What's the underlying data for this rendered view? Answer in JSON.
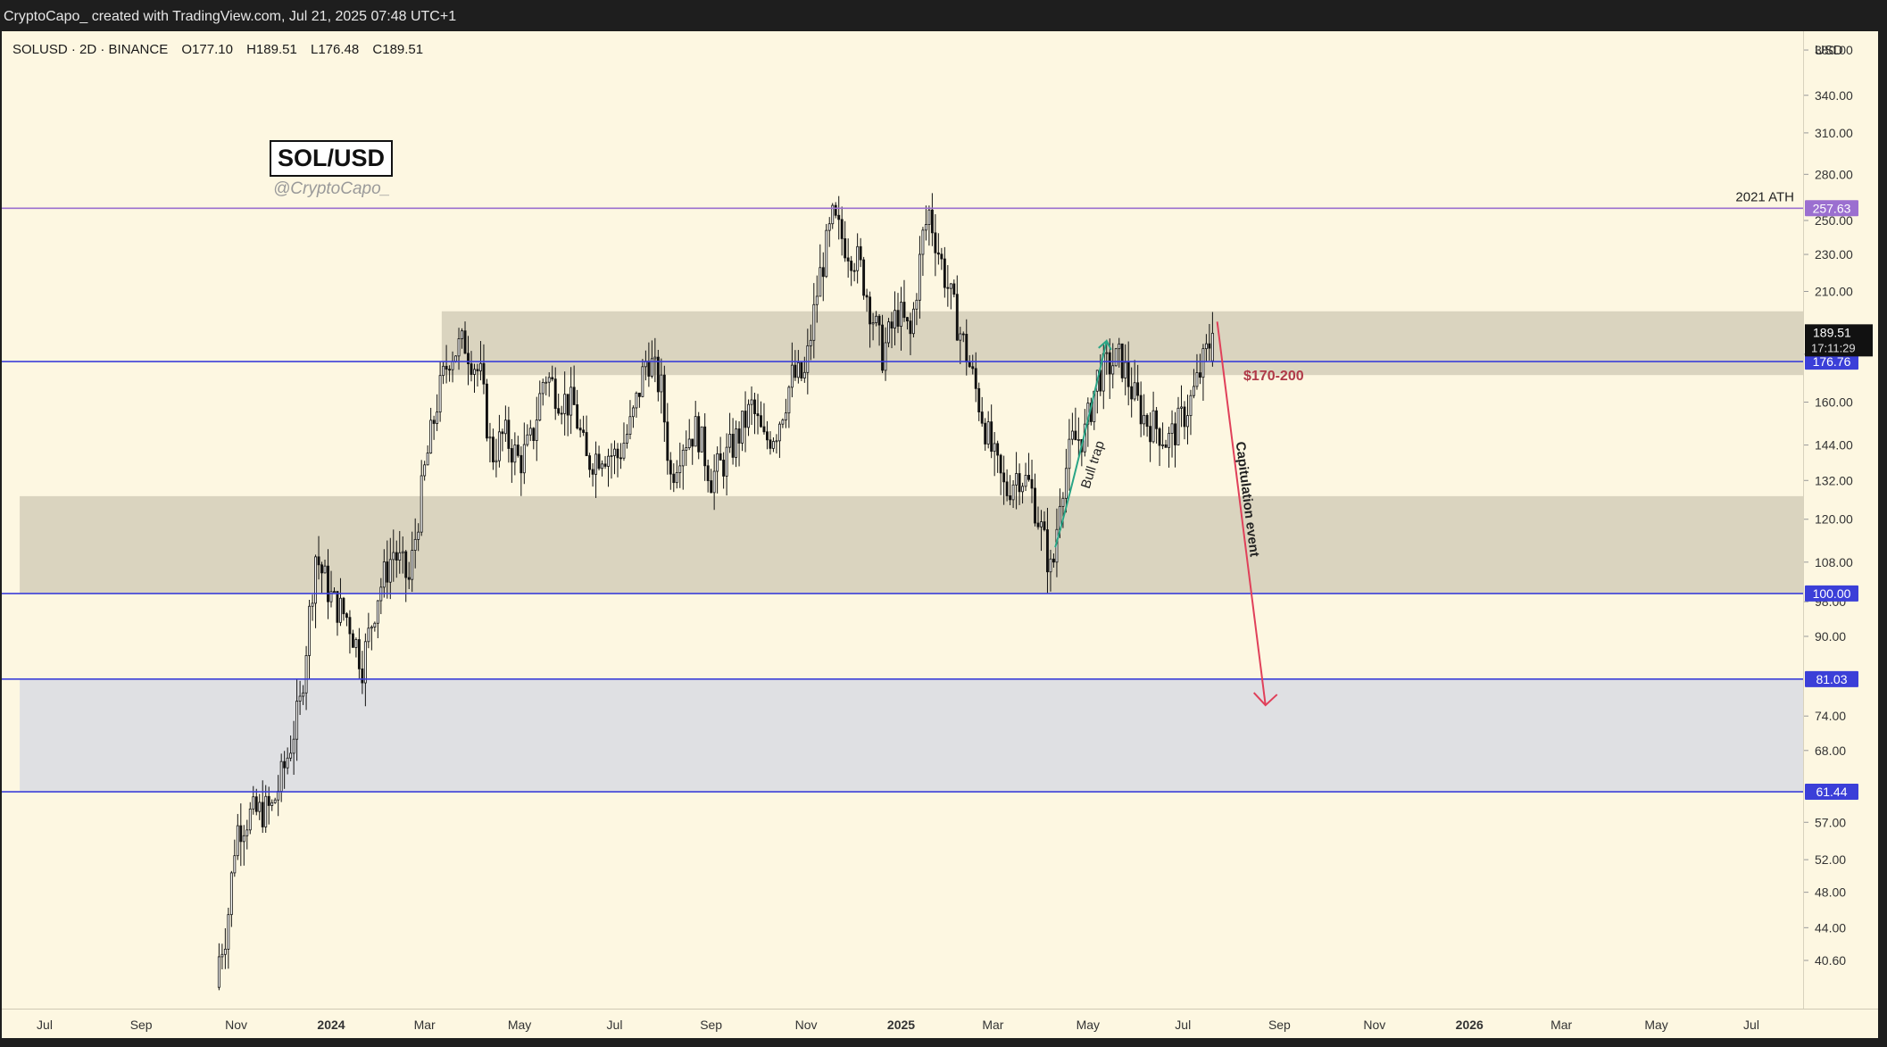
{
  "header": {
    "attribution": "CryptoCapo_ created with TradingView.com, Jul 21, 2025 07:48 UTC+1"
  },
  "legend": {
    "symbol": "SOLUSD · 2D · BINANCE",
    "open": "O177.10",
    "high": "H189.51",
    "low": "L176.48",
    "close": "C189.51"
  },
  "watermark": {
    "title": "SOL/USD",
    "handle": "@CryptoCapo_"
  },
  "price_axis": {
    "currency": "USD"
  },
  "countdown": "17:11:29",
  "colors": {
    "background": "#fdf7e1",
    "line_purple": "#9b6fd0",
    "line_blue": "#3b3fd8",
    "zone_tan": "#d6cfbb",
    "zone_blue": "#dcdde3",
    "bull_trap": "#2aa586",
    "capitulation": "#e0405a",
    "candle": "#111111"
  },
  "chart_data": {
    "type": "candlestick",
    "symbol": "SOLUSD",
    "interval": "2D",
    "exchange": "BINANCE",
    "scale": "log",
    "y_range": [
      38.5,
      420
    ],
    "x_range": [
      "2023-06-15",
      "2026-07-31"
    ],
    "y_ticks": [
      40.6,
      44,
      48,
      52,
      57,
      68,
      74,
      90,
      98,
      108,
      120,
      132,
      144,
      160,
      180,
      210,
      230,
      250,
      280,
      310,
      340,
      380
    ],
    "x_ticks": [
      {
        "label": "Jul",
        "date": "2023-07-01"
      },
      {
        "label": "Sep",
        "date": "2023-09-01"
      },
      {
        "label": "Nov",
        "date": "2023-11-01"
      },
      {
        "label": "2024",
        "date": "2024-01-01",
        "bold": true
      },
      {
        "label": "Mar",
        "date": "2024-03-01"
      },
      {
        "label": "May",
        "date": "2024-05-01"
      },
      {
        "label": "Jul",
        "date": "2024-07-01"
      },
      {
        "label": "Sep",
        "date": "2024-09-01"
      },
      {
        "label": "Nov",
        "date": "2024-11-01"
      },
      {
        "label": "2025",
        "date": "2025-01-01",
        "bold": true
      },
      {
        "label": "Mar",
        "date": "2025-03-01"
      },
      {
        "label": "May",
        "date": "2025-05-01"
      },
      {
        "label": "Jul",
        "date": "2025-07-01"
      },
      {
        "label": "Sep",
        "date": "2025-09-01"
      },
      {
        "label": "Nov",
        "date": "2025-11-01"
      },
      {
        "label": "2026",
        "date": "2026-01-01",
        "bold": true
      },
      {
        "label": "Mar",
        "date": "2026-03-01"
      },
      {
        "label": "May",
        "date": "2026-05-01"
      },
      {
        "label": "Jul",
        "date": "2026-07-01"
      }
    ],
    "levels": [
      {
        "price": 257.63,
        "label": "257.63",
        "color": "purple",
        "text": "2021 ATH"
      },
      {
        "price": 176.76,
        "label": "176.76",
        "color": "blue"
      },
      {
        "price": 100.0,
        "label": "100.00",
        "color": "blue"
      },
      {
        "price": 81.03,
        "label": "81.03",
        "color": "blue"
      },
      {
        "price": 61.44,
        "label": "61.44",
        "color": "blue"
      }
    ],
    "last_price": {
      "price": 189.51,
      "label": "189.51"
    },
    "zones": [
      {
        "from_date": "2024-03-12",
        "low": 171,
        "high": 200,
        "color": "tan"
      },
      {
        "from_date": "2023-06-15",
        "low": 100,
        "high": 127,
        "color": "tan"
      },
      {
        "from_date": "2023-06-15",
        "low": 61.44,
        "high": 81.03,
        "color": "blue"
      }
    ],
    "price_path": [
      [
        "2023-10-21",
        38,
        41
      ],
      [
        "2023-10-26",
        43,
        44
      ],
      [
        "2023-11-01",
        47,
        56
      ],
      [
        "2023-11-10",
        57,
        58
      ],
      [
        "2023-11-24",
        59,
        59
      ],
      [
        "2023-12-03",
        62,
        66
      ],
      [
        "2023-12-12",
        74,
        76
      ],
      [
        "2023-12-22",
        89,
        110
      ],
      [
        "2024-01-02",
        104,
        98
      ],
      [
        "2024-01-12",
        96,
        94
      ],
      [
        "2024-01-21",
        87,
        84
      ],
      [
        "2024-01-31",
        94,
        100
      ],
      [
        "2024-02-10",
        105,
        111
      ],
      [
        "2024-02-20",
        108,
        103
      ],
      [
        "2024-03-01",
        124,
        135
      ],
      [
        "2024-03-09",
        148,
        160
      ],
      [
        "2024-03-17",
        185,
        180
      ],
      [
        "2024-03-27",
        190,
        185
      ],
      [
        "2024-04-06",
        176,
        170
      ],
      [
        "2024-04-13",
        145,
        140
      ],
      [
        "2024-04-21",
        150,
        148
      ],
      [
        "2024-05-01",
        143,
        138
      ],
      [
        "2024-05-09",
        147,
        146
      ],
      [
        "2024-05-17",
        160,
        172
      ],
      [
        "2024-05-27",
        168,
        162
      ],
      [
        "2024-06-05",
        160,
        158
      ],
      [
        "2024-06-13",
        145,
        138
      ],
      [
        "2024-06-23",
        132,
        142
      ],
      [
        "2024-07-03",
        148,
        140
      ],
      [
        "2024-07-12",
        145,
        152
      ],
      [
        "2024-07-22",
        175,
        180
      ],
      [
        "2024-07-31",
        175,
        165
      ],
      [
        "2024-08-06",
        140,
        133
      ],
      [
        "2024-08-13",
        148,
        145
      ],
      [
        "2024-08-23",
        155,
        150
      ],
      [
        "2024-09-01",
        140,
        133
      ],
      [
        "2024-09-09",
        133,
        138
      ],
      [
        "2024-09-19",
        145,
        148
      ],
      [
        "2024-09-27",
        155,
        158
      ],
      [
        "2024-10-05",
        150,
        145
      ],
      [
        "2024-10-13",
        145,
        150
      ],
      [
        "2024-10-23",
        165,
        170
      ],
      [
        "2024-10-31",
        175,
        170
      ],
      [
        "2024-11-09",
        190,
        215
      ],
      [
        "2024-11-18",
        240,
        250
      ],
      [
        "2024-11-25",
        245,
        238
      ],
      [
        "2024-12-05",
        235,
        225
      ],
      [
        "2024-12-13",
        215,
        200
      ],
      [
        "2024-12-20",
        188,
        180
      ],
      [
        "2024-12-30",
        195,
        200
      ],
      [
        "2025-01-07",
        200,
        188
      ],
      [
        "2025-01-15",
        205,
        240
      ],
      [
        "2025-01-19",
        275,
        255
      ],
      [
        "2025-01-27",
        240,
        225
      ],
      [
        "2025-02-04",
        210,
        200
      ],
      [
        "2025-02-12",
        195,
        180
      ],
      [
        "2025-02-20",
        175,
        160
      ],
      [
        "2025-03-01",
        150,
        140
      ],
      [
        "2025-03-09",
        135,
        128
      ],
      [
        "2025-03-17",
        128,
        135
      ],
      [
        "2025-03-25",
        138,
        130
      ],
      [
        "2025-04-02",
        125,
        115
      ],
      [
        "2025-04-08",
        108,
        104
      ],
      [
        "2025-04-13",
        118,
        128
      ],
      [
        "2025-04-21",
        135,
        145
      ],
      [
        "2025-04-29",
        152,
        148
      ],
      [
        "2025-05-07",
        155,
        170
      ],
      [
        "2025-05-14",
        178,
        175
      ],
      [
        "2025-05-22",
        172,
        178
      ],
      [
        "2025-05-30",
        170,
        163
      ],
      [
        "2025-06-07",
        155,
        153
      ],
      [
        "2025-06-15",
        155,
        150
      ],
      [
        "2025-06-21",
        140,
        145
      ],
      [
        "2025-06-29",
        150,
        152
      ],
      [
        "2025-07-07",
        158,
        162
      ],
      [
        "2025-07-14",
        170,
        176
      ],
      [
        "2025-07-20",
        177.1,
        189.51
      ]
    ],
    "annotations": [
      {
        "text": "$170-200",
        "color": "dark-red"
      },
      {
        "text": "Bull trap",
        "color": "teal",
        "from": [
          "2025-04-10",
          112
        ],
        "to": [
          "2025-05-13",
          186
        ]
      },
      {
        "text": "Capitulation event",
        "color": "red",
        "from": [
          "2025-07-23",
          195
        ],
        "to": [
          "2025-08-23",
          76
        ]
      }
    ]
  }
}
